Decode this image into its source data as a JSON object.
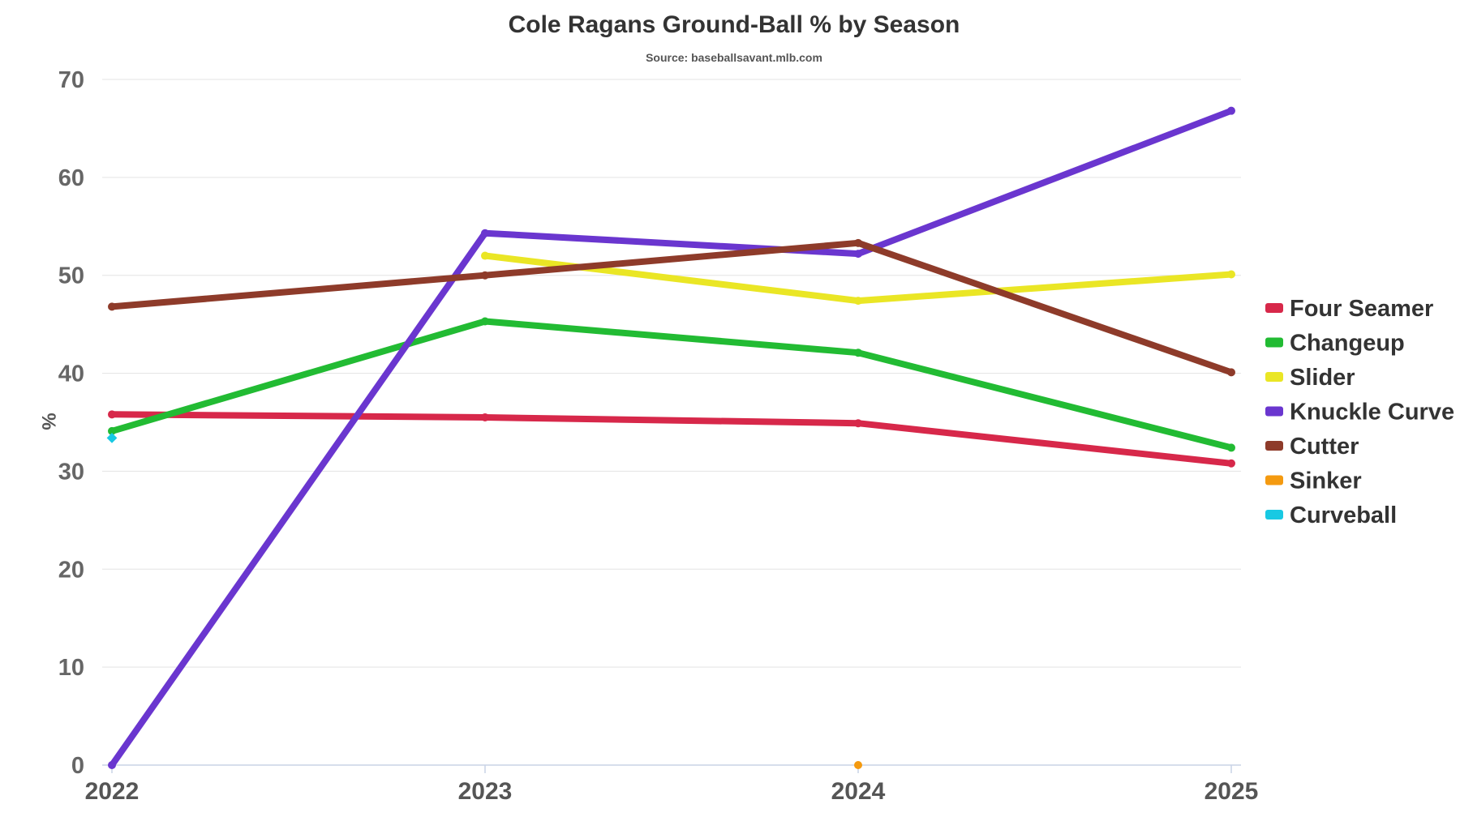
{
  "chart_data": {
    "type": "line",
    "title": "Cole Ragans Ground-Ball % by Season",
    "subtitle": "Source: baseballsavant.mlb.com",
    "xlabel": "",
    "ylabel": "%",
    "categories": [
      "2022",
      "2023",
      "2024",
      "2025"
    ],
    "ylim": [
      0,
      70
    ],
    "yticks": [
      0,
      10,
      20,
      30,
      40,
      50,
      60,
      70
    ],
    "grid": true,
    "legend": "right",
    "series": [
      {
        "name": "Four Seamer",
        "color": "#d7284a",
        "values": [
          35.8,
          35.5,
          34.9,
          30.8
        ]
      },
      {
        "name": "Changeup",
        "color": "#22bb33",
        "values": [
          34.1,
          45.3,
          42.1,
          32.4
        ]
      },
      {
        "name": "Slider",
        "color": "#eae625",
        "values": [
          null,
          52.0,
          47.4,
          50.1
        ]
      },
      {
        "name": "Knuckle Curve",
        "color": "#6a36cf",
        "values": [
          0.0,
          54.3,
          52.2,
          66.8
        ]
      },
      {
        "name": "Cutter",
        "color": "#8e3b2a",
        "values": [
          46.8,
          50.0,
          53.3,
          40.1
        ]
      },
      {
        "name": "Sinker",
        "color": "#f49a10",
        "values": [
          null,
          null,
          0.0,
          null
        ]
      },
      {
        "name": "Curveball",
        "color": "#18c9e3",
        "values": [
          33.4,
          null,
          null,
          null
        ]
      }
    ]
  }
}
